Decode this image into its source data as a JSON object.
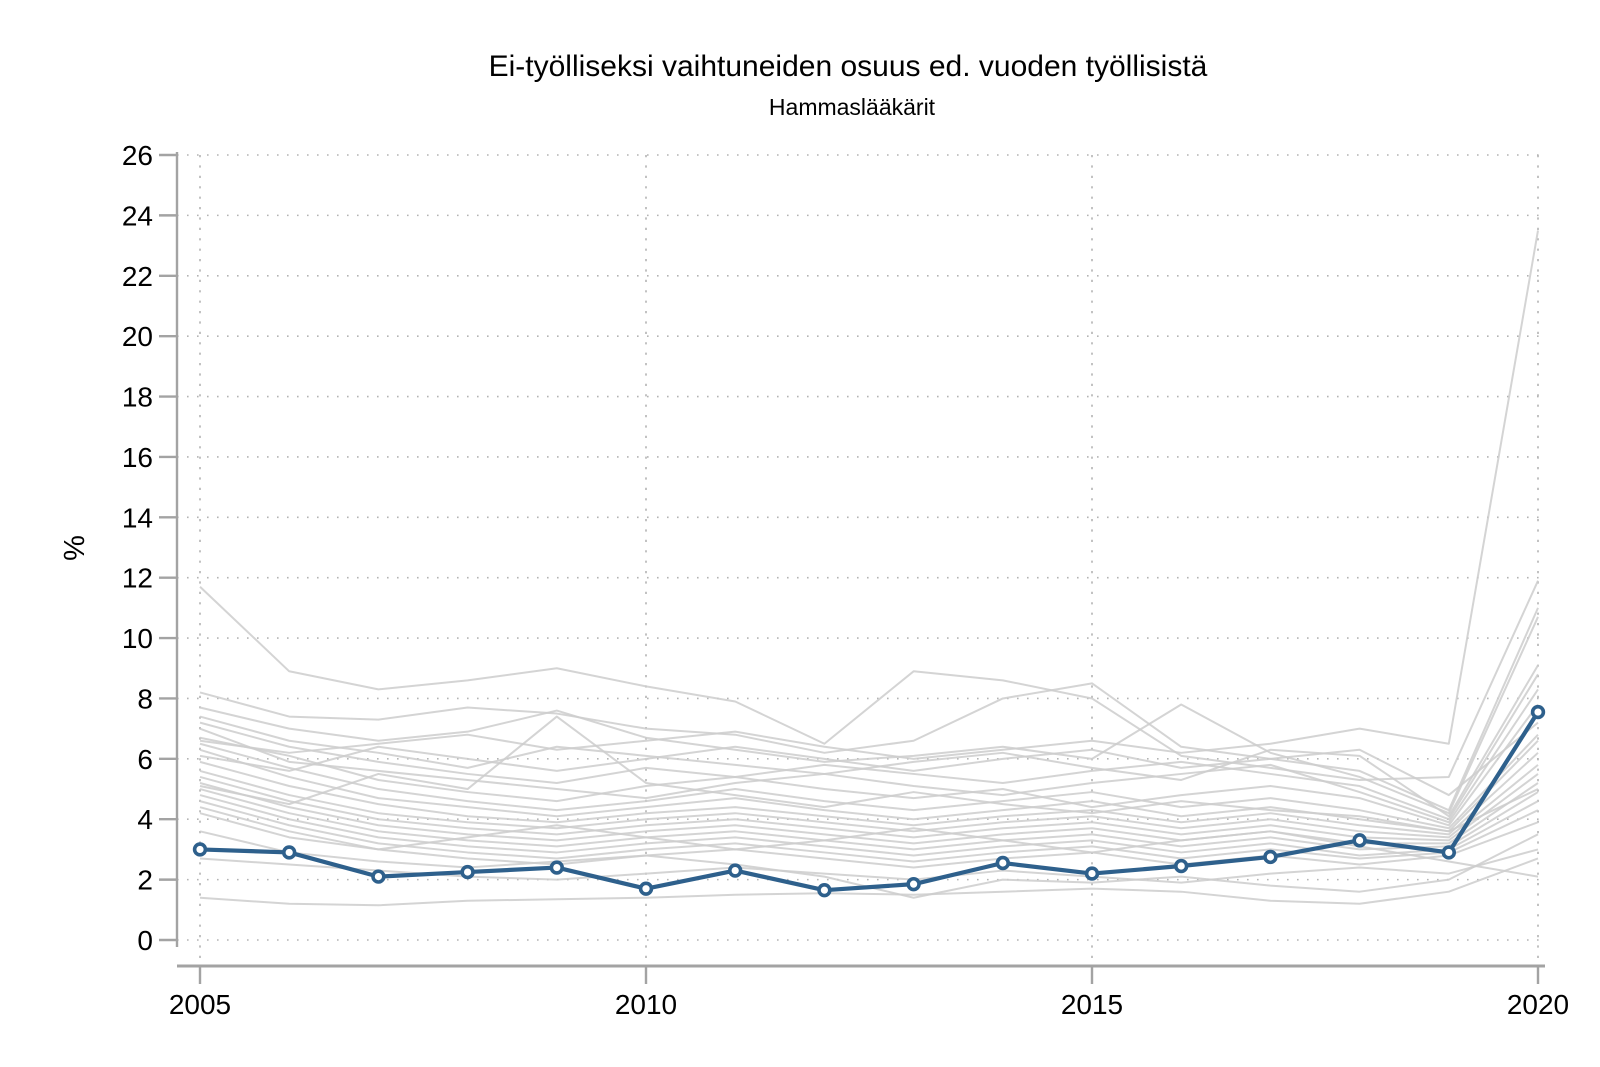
{
  "chart_data": {
    "type": "line",
    "title": "Ei-työlliseksi vaihtuneiden osuus ed. vuoden työllisistä",
    "subtitle": "Hammaslääkärit",
    "ylabel": "%",
    "xlim": [
      2005,
      2020
    ],
    "ylim": [
      0,
      26
    ],
    "x_ticks": [
      2005,
      2010,
      2015,
      2020
    ],
    "y_ticks": [
      0,
      2,
      4,
      6,
      8,
      10,
      12,
      14,
      16,
      18,
      20,
      22,
      24,
      26
    ],
    "grid": "dotted horizontal and vertical at ticks",
    "legend": "none",
    "x": [
      2005,
      2006,
      2007,
      2008,
      2009,
      2010,
      2011,
      2012,
      2013,
      2014,
      2015,
      2016,
      2017,
      2018,
      2019,
      2020
    ],
    "highlight_series": {
      "name": "Hammaslääkärit",
      "color": "#2e608c",
      "marker": "open-circle",
      "values": [
        3.0,
        2.9,
        2.1,
        2.25,
        2.4,
        1.7,
        2.3,
        1.65,
        1.85,
        2.55,
        2.2,
        2.45,
        2.75,
        3.3,
        2.9,
        7.55
      ]
    },
    "background_series": {
      "name": "other occupations (unlabeled)",
      "color": "#cdcdcd",
      "values": [
        [
          6.6,
          6.2,
          6.5,
          6.8,
          6.3,
          6.6,
          6.9,
          6.4,
          6.0,
          6.3,
          6.6,
          6.2,
          6.5,
          7.0,
          6.5,
          23.5
        ],
        [
          11.7,
          8.9,
          8.3,
          8.6,
          9.0,
          8.4,
          7.9,
          6.5,
          8.9,
          8.6,
          8.0,
          6.1,
          5.7,
          5.3,
          5.4,
          11.9
        ],
        [
          8.2,
          7.4,
          7.3,
          7.7,
          7.5,
          7.0,
          6.8,
          6.2,
          6.6,
          8.0,
          8.5,
          6.4,
          6.0,
          5.6,
          4.3,
          11.0
        ],
        [
          7.7,
          7.0,
          6.6,
          6.9,
          7.6,
          6.7,
          6.3,
          5.9,
          6.1,
          6.4,
          6.0,
          7.8,
          6.2,
          5.4,
          4.2,
          10.7
        ],
        [
          7.4,
          6.6,
          6.2,
          5.7,
          6.4,
          6.1,
          5.8,
          5.5,
          5.9,
          6.2,
          5.7,
          5.3,
          6.3,
          6.1,
          4.1,
          9.1
        ],
        [
          7.2,
          6.4,
          5.9,
          5.5,
          5.2,
          5.7,
          5.4,
          5.8,
          5.5,
          5.2,
          5.6,
          5.9,
          5.5,
          5.1,
          4.0,
          8.8
        ],
        [
          7.0,
          5.9,
          5.6,
          5.3,
          5.0,
          4.7,
          5.2,
          5.5,
          5.1,
          4.8,
          5.2,
          5.5,
          5.8,
          4.9,
          3.9,
          8.3
        ],
        [
          6.7,
          6.1,
          5.3,
          4.9,
          4.6,
          5.1,
          5.4,
          5.0,
          4.7,
          5.0,
          4.4,
          4.8,
          5.1,
          4.7,
          3.8,
          7.8
        ],
        [
          6.5,
          5.7,
          5.0,
          4.6,
          4.3,
          4.6,
          5.0,
          4.6,
          4.3,
          4.6,
          4.9,
          4.4,
          4.7,
          4.3,
          3.7,
          6.8
        ],
        [
          6.3,
          5.4,
          4.7,
          4.4,
          4.1,
          4.4,
          4.7,
          4.3,
          4.0,
          4.3,
          4.6,
          4.1,
          4.4,
          4.0,
          3.6,
          6.6
        ],
        [
          6.1,
          5.6,
          6.4,
          6.0,
          5.6,
          6.0,
          6.4,
          6.0,
          5.6,
          6.0,
          6.3,
          5.7,
          6.0,
          6.3,
          4.8,
          7.2
        ],
        [
          5.9,
          5.1,
          4.5,
          4.1,
          3.9,
          4.2,
          4.4,
          4.1,
          3.8,
          4.1,
          4.3,
          3.9,
          4.2,
          3.8,
          3.5,
          6.2
        ],
        [
          5.6,
          4.8,
          4.2,
          3.9,
          3.7,
          4.0,
          4.2,
          3.9,
          3.6,
          3.9,
          4.1,
          3.7,
          4.0,
          3.6,
          3.4,
          5.8
        ],
        [
          5.4,
          4.6,
          4.0,
          3.7,
          3.5,
          3.8,
          4.0,
          3.7,
          3.4,
          3.7,
          3.9,
          3.5,
          3.8,
          3.4,
          3.3,
          5.5
        ],
        [
          5.2,
          4.4,
          3.8,
          3.5,
          3.3,
          3.6,
          3.8,
          3.5,
          3.2,
          3.5,
          3.7,
          3.3,
          3.6,
          3.2,
          3.2,
          5.2
        ],
        [
          5.1,
          4.5,
          5.5,
          5.0,
          7.4,
          5.2,
          4.8,
          4.4,
          4.9,
          4.5,
          4.2,
          4.6,
          4.3,
          4.1,
          3.6,
          5.0
        ],
        [
          5.0,
          4.2,
          3.6,
          3.3,
          3.1,
          3.4,
          3.6,
          3.3,
          3.0,
          3.3,
          3.5,
          3.1,
          3.4,
          3.0,
          3.1,
          4.9
        ],
        [
          4.8,
          4.0,
          3.4,
          3.1,
          2.9,
          3.2,
          3.4,
          3.1,
          2.8,
          3.1,
          3.3,
          2.9,
          3.2,
          2.8,
          3.0,
          4.6
        ],
        [
          4.6,
          3.8,
          3.2,
          2.9,
          2.7,
          3.0,
          3.2,
          2.9,
          2.6,
          2.9,
          3.1,
          2.7,
          3.0,
          2.7,
          2.9,
          4.3
        ],
        [
          4.4,
          3.6,
          3.0,
          2.7,
          2.5,
          2.8,
          3.0,
          2.7,
          2.4,
          2.7,
          2.9,
          2.5,
          2.8,
          2.5,
          2.8,
          3.9
        ],
        [
          3.6,
          2.9,
          2.6,
          2.4,
          2.6,
          2.8,
          2.5,
          2.1,
          1.4,
          2.0,
          1.9,
          2.1,
          1.8,
          1.6,
          2.0,
          3.5
        ],
        [
          2.7,
          2.5,
          2.3,
          2.1,
          2.0,
          2.2,
          2.4,
          2.2,
          2.0,
          2.3,
          2.1,
          1.9,
          2.2,
          2.4,
          2.2,
          3.0
        ],
        [
          4.2,
          3.4,
          3.0,
          3.4,
          3.8,
          3.4,
          3.0,
          3.3,
          3.7,
          3.3,
          2.9,
          3.3,
          3.6,
          3.1,
          2.6,
          2.1
        ],
        [
          1.4,
          1.2,
          1.15,
          1.3,
          1.35,
          1.4,
          1.5,
          1.55,
          1.5,
          1.6,
          1.7,
          1.6,
          1.3,
          1.2,
          1.6,
          2.7
        ]
      ]
    },
    "colors": {
      "highlight": "#2e608c",
      "background_lines": "#cdcdcd",
      "axis": "#a3a3a3",
      "grid": "#b3b3b3",
      "text": "#000000"
    }
  }
}
